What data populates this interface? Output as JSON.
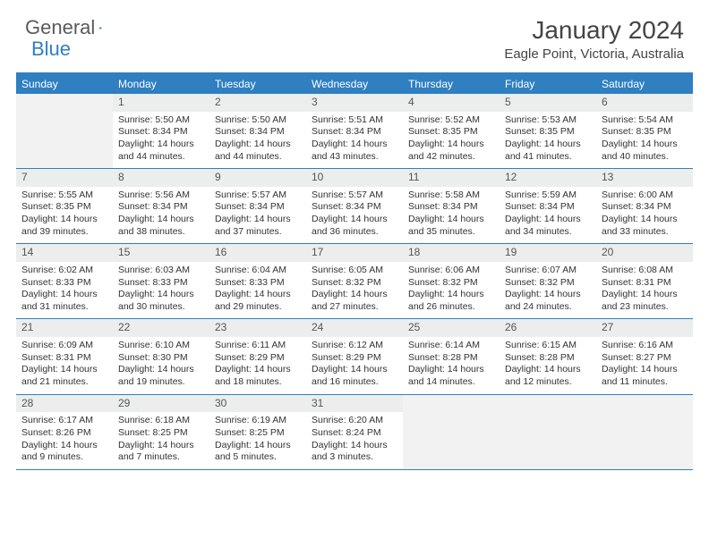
{
  "logo": {
    "general": "General",
    "blue": "Blue"
  },
  "title": "January 2024",
  "location": "Eagle Point, Victoria, Australia",
  "weekdays": [
    "Sunday",
    "Monday",
    "Tuesday",
    "Wednesday",
    "Thursday",
    "Friday",
    "Saturday"
  ],
  "colors": {
    "accent": "#2f7fc1",
    "header_bg": "#2f7fc1",
    "header_text": "#ffffff",
    "daynum_bg": "#eceded",
    "daynum_text": "#555555",
    "text": "#333333",
    "background": "#ffffff",
    "title_text": "#444444",
    "logo_gray": "#5a5a5a"
  },
  "layout": {
    "columns": 7,
    "rows": 5,
    "first_weekday_index": 1,
    "cell_fontsize_pt": 8,
    "daynum_fontsize_pt": 9,
    "weekday_fontsize_pt": 9,
    "title_fontsize_pt": 21,
    "location_fontsize_pt": 11
  },
  "days": [
    {
      "n": 1,
      "sunrise": "Sunrise: 5:50 AM",
      "sunset": "Sunset: 8:34 PM",
      "daylight1": "Daylight: 14 hours",
      "daylight2": "and 44 minutes."
    },
    {
      "n": 2,
      "sunrise": "Sunrise: 5:50 AM",
      "sunset": "Sunset: 8:34 PM",
      "daylight1": "Daylight: 14 hours",
      "daylight2": "and 44 minutes."
    },
    {
      "n": 3,
      "sunrise": "Sunrise: 5:51 AM",
      "sunset": "Sunset: 8:34 PM",
      "daylight1": "Daylight: 14 hours",
      "daylight2": "and 43 minutes."
    },
    {
      "n": 4,
      "sunrise": "Sunrise: 5:52 AM",
      "sunset": "Sunset: 8:35 PM",
      "daylight1": "Daylight: 14 hours",
      "daylight2": "and 42 minutes."
    },
    {
      "n": 5,
      "sunrise": "Sunrise: 5:53 AM",
      "sunset": "Sunset: 8:35 PM",
      "daylight1": "Daylight: 14 hours",
      "daylight2": "and 41 minutes."
    },
    {
      "n": 6,
      "sunrise": "Sunrise: 5:54 AM",
      "sunset": "Sunset: 8:35 PM",
      "daylight1": "Daylight: 14 hours",
      "daylight2": "and 40 minutes."
    },
    {
      "n": 7,
      "sunrise": "Sunrise: 5:55 AM",
      "sunset": "Sunset: 8:35 PM",
      "daylight1": "Daylight: 14 hours",
      "daylight2": "and 39 minutes."
    },
    {
      "n": 8,
      "sunrise": "Sunrise: 5:56 AM",
      "sunset": "Sunset: 8:34 PM",
      "daylight1": "Daylight: 14 hours",
      "daylight2": "and 38 minutes."
    },
    {
      "n": 9,
      "sunrise": "Sunrise: 5:57 AM",
      "sunset": "Sunset: 8:34 PM",
      "daylight1": "Daylight: 14 hours",
      "daylight2": "and 37 minutes."
    },
    {
      "n": 10,
      "sunrise": "Sunrise: 5:57 AM",
      "sunset": "Sunset: 8:34 PM",
      "daylight1": "Daylight: 14 hours",
      "daylight2": "and 36 minutes."
    },
    {
      "n": 11,
      "sunrise": "Sunrise: 5:58 AM",
      "sunset": "Sunset: 8:34 PM",
      "daylight1": "Daylight: 14 hours",
      "daylight2": "and 35 minutes."
    },
    {
      "n": 12,
      "sunrise": "Sunrise: 5:59 AM",
      "sunset": "Sunset: 8:34 PM",
      "daylight1": "Daylight: 14 hours",
      "daylight2": "and 34 minutes."
    },
    {
      "n": 13,
      "sunrise": "Sunrise: 6:00 AM",
      "sunset": "Sunset: 8:34 PM",
      "daylight1": "Daylight: 14 hours",
      "daylight2": "and 33 minutes."
    },
    {
      "n": 14,
      "sunrise": "Sunrise: 6:02 AM",
      "sunset": "Sunset: 8:33 PM",
      "daylight1": "Daylight: 14 hours",
      "daylight2": "and 31 minutes."
    },
    {
      "n": 15,
      "sunrise": "Sunrise: 6:03 AM",
      "sunset": "Sunset: 8:33 PM",
      "daylight1": "Daylight: 14 hours",
      "daylight2": "and 30 minutes."
    },
    {
      "n": 16,
      "sunrise": "Sunrise: 6:04 AM",
      "sunset": "Sunset: 8:33 PM",
      "daylight1": "Daylight: 14 hours",
      "daylight2": "and 29 minutes."
    },
    {
      "n": 17,
      "sunrise": "Sunrise: 6:05 AM",
      "sunset": "Sunset: 8:32 PM",
      "daylight1": "Daylight: 14 hours",
      "daylight2": "and 27 minutes."
    },
    {
      "n": 18,
      "sunrise": "Sunrise: 6:06 AM",
      "sunset": "Sunset: 8:32 PM",
      "daylight1": "Daylight: 14 hours",
      "daylight2": "and 26 minutes."
    },
    {
      "n": 19,
      "sunrise": "Sunrise: 6:07 AM",
      "sunset": "Sunset: 8:32 PM",
      "daylight1": "Daylight: 14 hours",
      "daylight2": "and 24 minutes."
    },
    {
      "n": 20,
      "sunrise": "Sunrise: 6:08 AM",
      "sunset": "Sunset: 8:31 PM",
      "daylight1": "Daylight: 14 hours",
      "daylight2": "and 23 minutes."
    },
    {
      "n": 21,
      "sunrise": "Sunrise: 6:09 AM",
      "sunset": "Sunset: 8:31 PM",
      "daylight1": "Daylight: 14 hours",
      "daylight2": "and 21 minutes."
    },
    {
      "n": 22,
      "sunrise": "Sunrise: 6:10 AM",
      "sunset": "Sunset: 8:30 PM",
      "daylight1": "Daylight: 14 hours",
      "daylight2": "and 19 minutes."
    },
    {
      "n": 23,
      "sunrise": "Sunrise: 6:11 AM",
      "sunset": "Sunset: 8:29 PM",
      "daylight1": "Daylight: 14 hours",
      "daylight2": "and 18 minutes."
    },
    {
      "n": 24,
      "sunrise": "Sunrise: 6:12 AM",
      "sunset": "Sunset: 8:29 PM",
      "daylight1": "Daylight: 14 hours",
      "daylight2": "and 16 minutes."
    },
    {
      "n": 25,
      "sunrise": "Sunrise: 6:14 AM",
      "sunset": "Sunset: 8:28 PM",
      "daylight1": "Daylight: 14 hours",
      "daylight2": "and 14 minutes."
    },
    {
      "n": 26,
      "sunrise": "Sunrise: 6:15 AM",
      "sunset": "Sunset: 8:28 PM",
      "daylight1": "Daylight: 14 hours",
      "daylight2": "and 12 minutes."
    },
    {
      "n": 27,
      "sunrise": "Sunrise: 6:16 AM",
      "sunset": "Sunset: 8:27 PM",
      "daylight1": "Daylight: 14 hours",
      "daylight2": "and 11 minutes."
    },
    {
      "n": 28,
      "sunrise": "Sunrise: 6:17 AM",
      "sunset": "Sunset: 8:26 PM",
      "daylight1": "Daylight: 14 hours",
      "daylight2": "and 9 minutes."
    },
    {
      "n": 29,
      "sunrise": "Sunrise: 6:18 AM",
      "sunset": "Sunset: 8:25 PM",
      "daylight1": "Daylight: 14 hours",
      "daylight2": "and 7 minutes."
    },
    {
      "n": 30,
      "sunrise": "Sunrise: 6:19 AM",
      "sunset": "Sunset: 8:25 PM",
      "daylight1": "Daylight: 14 hours",
      "daylight2": "and 5 minutes."
    },
    {
      "n": 31,
      "sunrise": "Sunrise: 6:20 AM",
      "sunset": "Sunset: 8:24 PM",
      "daylight1": "Daylight: 14 hours",
      "daylight2": "and 3 minutes."
    }
  ]
}
